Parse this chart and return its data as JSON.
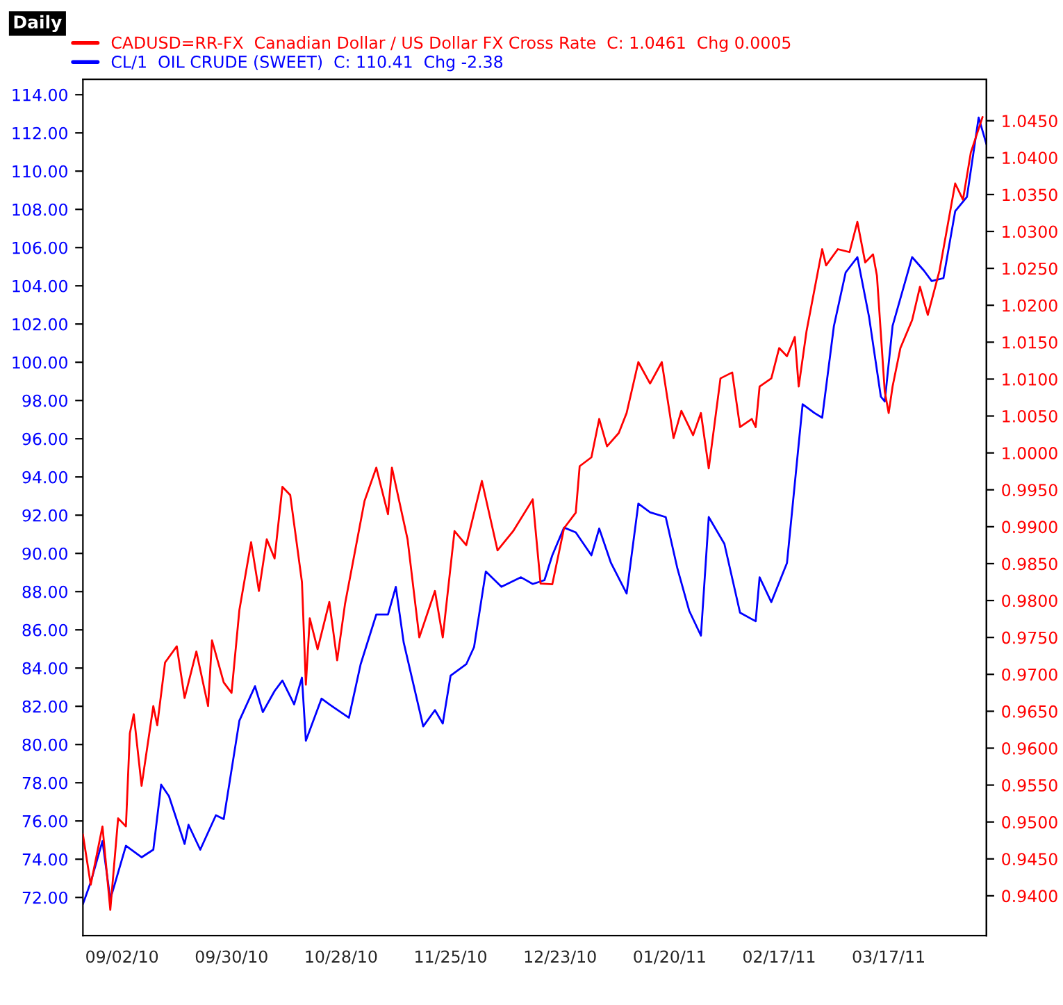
{
  "chart_data": {
    "type": "line",
    "title": "Daily",
    "legend": "top left",
    "grid": false,
    "marker": "none",
    "line_style": "solid",
    "xlim": [
      "2010-08-23",
      "2011-04-11"
    ],
    "xticks": [
      {
        "value": "2010-09-02",
        "label": "09/02/10"
      },
      {
        "value": "2010-09-30",
        "label": "09/30/10"
      },
      {
        "value": "2010-10-28",
        "label": "10/28/10"
      },
      {
        "value": "2010-11-25",
        "label": "11/25/10"
      },
      {
        "value": "2010-12-23",
        "label": "12/23/10"
      },
      {
        "value": "2011-01-20",
        "label": "01/20/11"
      },
      {
        "value": "2011-02-17",
        "label": "02/17/11"
      },
      {
        "value": "2011-03-17",
        "label": "03/17/11"
      }
    ],
    "ylim": [
      70,
      114.8
    ],
    "yticks": [
      {
        "value": 72,
        "label": "72.00"
      },
      {
        "value": 74,
        "label": "74.00"
      },
      {
        "value": 76,
        "label": "76.00"
      },
      {
        "value": 78,
        "label": "78.00"
      },
      {
        "value": 80,
        "label": "80.00"
      },
      {
        "value": 82,
        "label": "82.00"
      },
      {
        "value": 84,
        "label": "84.00"
      },
      {
        "value": 86,
        "label": "86.00"
      },
      {
        "value": 88,
        "label": "88.00"
      },
      {
        "value": 90,
        "label": "90.00"
      },
      {
        "value": 92,
        "label": "92.00"
      },
      {
        "value": 94,
        "label": "94.00"
      },
      {
        "value": 96,
        "label": "96.00"
      },
      {
        "value": 98,
        "label": "98.00"
      },
      {
        "value": 100,
        "label": "100.00"
      },
      {
        "value": 102,
        "label": "102.00"
      },
      {
        "value": 104,
        "label": "104.00"
      },
      {
        "value": 106,
        "label": "106.00"
      },
      {
        "value": 108,
        "label": "108.00"
      },
      {
        "value": 110,
        "label": "110.00"
      },
      {
        "value": 112,
        "label": "112.00"
      },
      {
        "value": 114,
        "label": "114.00"
      }
    ],
    "y2lim": [
      0.9346,
      1.0506
    ],
    "y2ticks": [
      {
        "value": 0.94,
        "label": "0.9400"
      },
      {
        "value": 0.945,
        "label": "0.9450"
      },
      {
        "value": 0.95,
        "label": "0.9500"
      },
      {
        "value": 0.955,
        "label": "0.9550"
      },
      {
        "value": 0.96,
        "label": "0.9600"
      },
      {
        "value": 0.965,
        "label": "0.9650"
      },
      {
        "value": 0.97,
        "label": "0.9700"
      },
      {
        "value": 0.975,
        "label": "0.9750"
      },
      {
        "value": 0.98,
        "label": "0.9800"
      },
      {
        "value": 0.985,
        "label": "0.9850"
      },
      {
        "value": 0.99,
        "label": "0.9900"
      },
      {
        "value": 0.995,
        "label": "0.9950"
      },
      {
        "value": 1.0,
        "label": "1.0000"
      },
      {
        "value": 1.005,
        "label": "1.0050"
      },
      {
        "value": 1.01,
        "label": "1.0100"
      },
      {
        "value": 1.015,
        "label": "1.0150"
      },
      {
        "value": 1.02,
        "label": "1.0200"
      },
      {
        "value": 1.025,
        "label": "1.0250"
      },
      {
        "value": 1.03,
        "label": "1.0300"
      },
      {
        "value": 1.035,
        "label": "1.0350"
      },
      {
        "value": 1.04,
        "label": "1.0400"
      },
      {
        "value": 1.045,
        "label": "1.0450"
      }
    ],
    "series": [
      {
        "name": "CADUSD=RR-FX  Canadian Dollar / US Dollar FX Cross Rate  C: 1.0461  Chg 0.0005",
        "color": "#ff0000",
        "axis": "y2",
        "x": [
          "2010-08-23",
          "2010-08-25",
          "2010-08-28",
          "2010-08-30",
          "2010-09-01",
          "2010-09-03",
          "2010-09-04",
          "2010-09-05",
          "2010-09-07",
          "2010-09-10",
          "2010-09-11",
          "2010-09-13",
          "2010-09-16",
          "2010-09-18",
          "2010-09-21",
          "2010-09-24",
          "2010-09-25",
          "2010-09-28",
          "2010-09-30",
          "2010-10-02",
          "2010-10-05",
          "2010-10-07",
          "2010-10-09",
          "2010-10-11",
          "2010-10-13",
          "2010-10-15",
          "2010-10-18",
          "2010-10-19",
          "2010-10-20",
          "2010-10-22",
          "2010-10-25",
          "2010-10-27",
          "2010-10-29",
          "2010-11-03",
          "2010-11-06",
          "2010-11-09",
          "2010-11-10",
          "2010-11-14",
          "2010-11-17",
          "2010-11-21",
          "2010-11-23",
          "2010-11-26",
          "2010-11-29",
          "2010-12-03",
          "2010-12-07",
          "2010-12-11",
          "2010-12-16",
          "2010-12-18",
          "2010-12-21",
          "2010-12-24",
          "2010-12-27",
          "2010-12-28",
          "2010-12-31",
          "2011-01-02",
          "2011-01-04",
          "2011-01-07",
          "2011-01-09",
          "2011-01-12",
          "2011-01-15",
          "2011-01-18",
          "2011-01-21",
          "2011-01-23",
          "2011-01-26",
          "2011-01-28",
          "2011-01-30",
          "2011-02-02",
          "2011-02-05",
          "2011-02-07",
          "2011-02-10",
          "2011-02-11",
          "2011-02-12",
          "2011-02-15",
          "2011-02-17",
          "2011-02-19",
          "2011-02-21",
          "2011-02-22",
          "2011-02-24",
          "2011-02-28",
          "2011-03-01",
          "2011-03-04",
          "2011-03-07",
          "2011-03-09",
          "2011-03-11",
          "2011-03-13",
          "2011-03-14",
          "2011-03-16",
          "2011-03-17",
          "2011-03-18",
          "2011-03-20",
          "2011-03-23",
          "2011-03-25",
          "2011-03-27",
          "2011-03-30",
          "2011-04-03",
          "2011-04-05",
          "2011-04-07",
          "2011-04-10"
        ],
        "values": [
          0.9483,
          0.9415,
          0.9494,
          0.9381,
          0.9505,
          0.9494,
          0.962,
          0.9646,
          0.9549,
          0.9657,
          0.9631,
          0.9716,
          0.9738,
          0.9668,
          0.9731,
          0.9657,
          0.9746,
          0.9689,
          0.9675,
          0.9787,
          0.9879,
          0.9813,
          0.9883,
          0.9857,
          0.9954,
          0.9943,
          0.9825,
          0.9686,
          0.9776,
          0.9734,
          0.9798,
          0.9719,
          0.9795,
          0.9935,
          0.998,
          0.9917,
          0.998,
          0.9883,
          0.975,
          0.9813,
          0.975,
          0.9894,
          0.9875,
          0.9962,
          0.9868,
          0.9894,
          0.9937,
          0.9823,
          0.9822,
          0.9898,
          0.9919,
          0.9982,
          0.9994,
          1.0046,
          1.0009,
          1.0027,
          1.0054,
          1.0123,
          1.0094,
          1.0123,
          1.002,
          1.0057,
          1.0024,
          1.0054,
          0.9979,
          1.0101,
          1.0109,
          1.0035,
          1.0046,
          1.0035,
          1.009,
          1.0101,
          1.0142,
          1.0131,
          1.0157,
          1.009,
          1.0165,
          1.0276,
          1.0254,
          1.0276,
          1.0272,
          1.0313,
          1.0258,
          1.0269,
          1.024,
          1.0083,
          1.0054,
          1.009,
          1.0142,
          1.018,
          1.0225,
          1.0187,
          1.0247,
          1.0365,
          1.0343,
          1.0407,
          1.0455
        ]
      },
      {
        "name": "CL/1  OIL CRUDE (SWEET)  C: 110.41  Chg -2.38",
        "color": "#0000ff",
        "x": [
          "2010-08-23",
          "2010-08-25",
          "2010-08-28",
          "2010-08-30",
          "2010-09-03",
          "2010-09-07",
          "2010-09-10",
          "2010-09-12",
          "2010-09-14",
          "2010-09-18",
          "2010-09-19",
          "2010-09-22",
          "2010-09-26",
          "2010-09-28",
          "2010-10-02",
          "2010-10-06",
          "2010-10-08",
          "2010-10-11",
          "2010-10-13",
          "2010-10-16",
          "2010-10-18",
          "2010-10-19",
          "2010-10-23",
          "2010-10-25",
          "2010-10-30",
          "2010-11-02",
          "2010-11-06",
          "2010-11-09",
          "2010-11-11",
          "2010-11-13",
          "2010-11-18",
          "2010-11-21",
          "2010-11-23",
          "2010-11-25",
          "2010-11-29",
          "2010-12-01",
          "2010-12-04",
          "2010-12-08",
          "2010-12-13",
          "2010-12-16",
          "2010-12-19",
          "2010-12-21",
          "2010-12-24",
          "2010-12-27",
          "2010-12-31",
          "2011-01-02",
          "2011-01-05",
          "2011-01-09",
          "2011-01-12",
          "2011-01-15",
          "2011-01-19",
          "2011-01-22",
          "2011-01-25",
          "2011-01-28",
          "2011-01-30",
          "2011-02-03",
          "2011-02-07",
          "2011-02-11",
          "2011-02-12",
          "2011-02-15",
          "2011-02-19",
          "2011-02-23",
          "2011-02-26",
          "2011-02-28",
          "2011-03-03",
          "2011-03-06",
          "2011-03-09",
          "2011-03-12",
          "2011-03-15",
          "2011-03-16",
          "2011-03-18",
          "2011-03-23",
          "2011-03-26",
          "2011-03-28",
          "2011-03-31",
          "2011-04-03",
          "2011-04-06",
          "2011-04-09",
          "2011-04-11"
        ],
        "values": [
          71.65,
          72.8,
          74.95,
          71.9,
          74.7,
          74.1,
          74.5,
          77.9,
          77.3,
          74.8,
          75.8,
          74.5,
          76.3,
          76.1,
          81.25,
          83.05,
          81.7,
          82.8,
          83.35,
          82.1,
          83.5,
          80.2,
          82.4,
          82.1,
          81.4,
          84.2,
          86.8,
          86.8,
          88.25,
          85.35,
          80.95,
          81.8,
          81.1,
          83.6,
          84.2,
          85.1,
          89.05,
          88.25,
          88.75,
          88.4,
          88.6,
          89.9,
          91.35,
          91.1,
          89.9,
          91.3,
          89.5,
          87.9,
          92.6,
          92.15,
          91.9,
          89.2,
          87.0,
          85.7,
          91.9,
          90.5,
          86.9,
          86.45,
          88.75,
          87.45,
          89.5,
          97.8,
          97.35,
          97.1,
          101.9,
          104.7,
          105.5,
          102.35,
          98.2,
          97.95,
          101.9,
          105.5,
          104.8,
          104.25,
          104.4,
          107.9,
          108.65,
          112.8,
          111.4
        ]
      }
    ]
  }
}
